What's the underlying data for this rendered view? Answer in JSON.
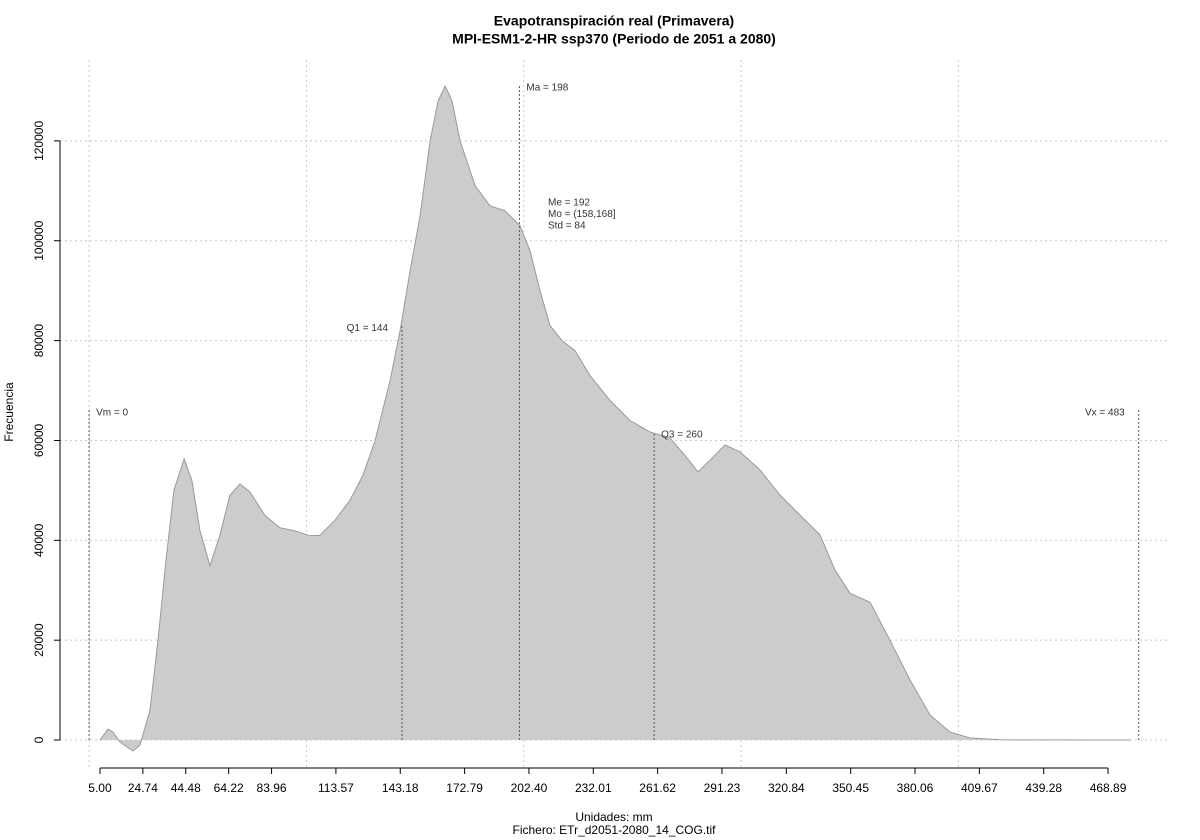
{
  "chart_data": {
    "type": "area",
    "title": "Evapotranspiración real (Primavera)",
    "subtitle": "MPI-ESM1-2-HR ssp370 (Periodo de 2051 a 2080)",
    "x_label": "Unidades: mm",
    "caption": "Fichero: ETr_d2051-2080_14_COG.tif",
    "y_label": "Frecuencia",
    "color": "#cccccc",
    "line_color": "#999999",
    "x": [
      5,
      8.7,
      11,
      14.2,
      20.2,
      23.4,
      28,
      31.7,
      35.4,
      39,
      43.7,
      47.3,
      51,
      55.6,
      60.2,
      64.8,
      69.4,
      74,
      80.9,
      87.8,
      94.7,
      101.6,
      106.2,
      113.1,
      120,
      126,
      131.6,
      138.5,
      143.1,
      147.7,
      152.3,
      156.9,
      160.6,
      163.8,
      167,
      170.7,
      177.6,
      184.5,
      191.4,
      198.3,
      202.9,
      207.5,
      212.1,
      217.6,
      223.6,
      230.5,
      239.7,
      248.9,
      258.1,
      267.3,
      274.2,
      280.2,
      285.7,
      292.6,
      299.5,
      308.7,
      317.9,
      327.1,
      336.3,
      343.2,
      350.1,
      359.4,
      368.5,
      377.8,
      387,
      396.2,
      405.4,
      419.2,
      479
    ],
    "values": [
      0,
      2200,
      1600,
      -400,
      -2200,
      -1000,
      6000,
      20000,
      36000,
      50000,
      56300,
      52000,
      42000,
      34900,
      41000,
      49000,
      51300,
      49700,
      45000,
      42500,
      41900,
      40900,
      41000,
      44000,
      48000,
      53000,
      60000,
      72000,
      82000,
      94000,
      105000,
      120000,
      128000,
      131000,
      128000,
      120000,
      111000,
      107000,
      106000,
      103000,
      98000,
      90000,
      83000,
      80000,
      78000,
      73000,
      68000,
      64000,
      61700,
      60500,
      57000,
      53700,
      56000,
      59100,
      57700,
      54100,
      49100,
      45100,
      41100,
      34100,
      29400,
      27600,
      20000,
      12000,
      5000,
      1600,
      400,
      50,
      0
    ],
    "xlim": [
      -13.4,
      497.4
    ],
    "ylim": [
      -5600,
      136200
    ],
    "xticks": [
      {
        "value": 5,
        "label": "5.00"
      },
      24.74,
      44.48,
      64.22,
      83.96,
      113.57,
      143.18,
      172.79,
      {
        "value": 202.4,
        "label": "202.40"
      },
      232.01,
      261.62,
      291.23,
      320.84,
      350.45,
      380.06,
      409.67,
      439.28,
      468.89
    ],
    "yticks": [
      0,
      20000,
      40000,
      60000,
      80000,
      100000,
      120000
    ],
    "xgrid": [
      0,
      100,
      200,
      300,
      400
    ],
    "grid": true,
    "markers": [
      {
        "label": "Vm = 0",
        "x": 0,
        "top": 66100
      },
      {
        "label": "Q1 = 144",
        "x": 144,
        "top": 83100
      },
      {
        "label": "Ma = 198",
        "x": 198,
        "top": 131200
      },
      {
        "label": "Q3 = 260",
        "x": 260,
        "top": 61700
      },
      {
        "label": "Vx = 483",
        "x": 483,
        "top": 66100
      }
    ],
    "stats": [
      "Me = 192",
      "Mo = (158,168]",
      "Std = 84"
    ]
  }
}
